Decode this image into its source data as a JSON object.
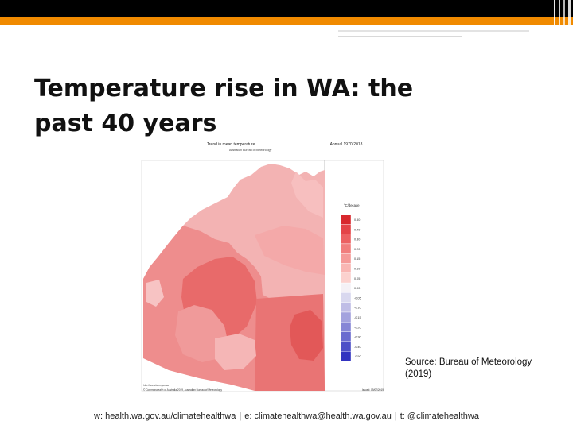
{
  "slide": {
    "title_line1": "Temperature rise in WA: the",
    "title_line2": "past 40 years"
  },
  "map": {
    "heading": "Trend in mean temperature",
    "period": "Annual 1970-2018",
    "agency": "Australian Bureau of Meteorology",
    "legend_unit": "°C/decade",
    "legend_values": [
      "0.50",
      "0.40",
      "0.30",
      "0.20",
      "0.15",
      "0.10",
      "0.05",
      "0.00",
      "-0.05",
      "-0.10",
      "-0.15",
      "-0.20",
      "-0.30",
      "-0.40",
      "-0.50"
    ],
    "legend_colors": [
      "#d8282d",
      "#e44448",
      "#ec6162",
      "#f17e7d",
      "#f59a98",
      "#f9b6b3",
      "#fbd1ce",
      "#f4f1f6",
      "#d9d8ef",
      "#bfbde6",
      "#a3a2de",
      "#8686d6",
      "#6a6bcf",
      "#4d4fc7",
      "#3233c0"
    ],
    "footer_url": "http://www.bom.gov.au",
    "footer_copyright": "© Commonwealth of Australia 2019, Australian Bureau of Meteorology",
    "footer_issued": "Issued: 09/07/2019"
  },
  "source_note": "Source: Bureau of Meteorology (2019)",
  "footer": {
    "web": "w: health.wa.gov.au/climatehealthwa",
    "email": "e: climatehealthwa@health.wa.gov.au",
    "twitter": "t: @climatehealthwa",
    "sep": "|"
  }
}
